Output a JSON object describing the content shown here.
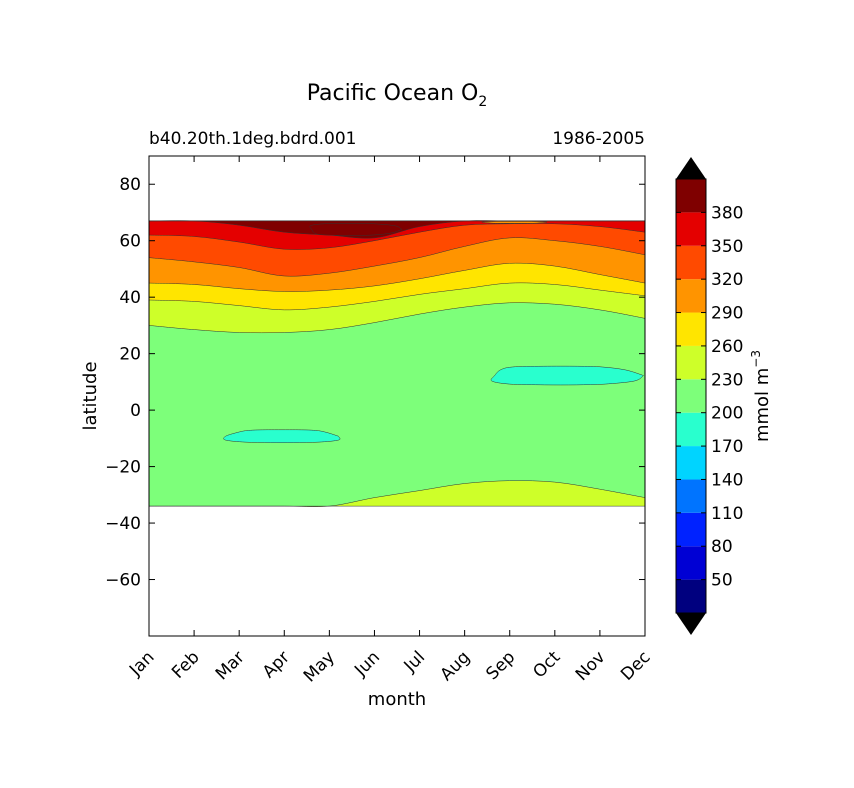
{
  "chart_data": {
    "type": "contourf",
    "title": "Pacific Ocean O",
    "title_subscript": "2",
    "subtitle_left": "b40.20th.1deg.bdrd.001",
    "subtitle_right": "1986-2005",
    "xlabel": "month",
    "ylabel": "latitude",
    "xlim": [
      0,
      11
    ],
    "ylim": [
      -80,
      90
    ],
    "x_tick_labels": [
      "Jan",
      "Feb",
      "Mar",
      "Apr",
      "May",
      "Jun",
      "Jul",
      "Aug",
      "Sep",
      "Oct",
      "Nov",
      "Dec"
    ],
    "y_ticks": [
      80,
      60,
      40,
      20,
      0,
      -20,
      -40,
      -60
    ],
    "y_tick_labels": [
      "80",
      "60",
      "40",
      "20",
      "0",
      "−20",
      "−40",
      "−60"
    ],
    "data_lat_range": [
      -34,
      67
    ],
    "colorbar": {
      "label": "mmol m",
      "label_superscript": "−3",
      "levels": [
        20,
        50,
        80,
        110,
        140,
        170,
        200,
        230,
        260,
        290,
        320,
        350,
        380,
        410
      ],
      "tick_labels": [
        "50",
        "80",
        "110",
        "140",
        "170",
        "200",
        "230",
        "260",
        "290",
        "320",
        "350",
        "380"
      ],
      "colors": [
        "#00007f",
        "#0000d4",
        "#0022ff",
        "#0074ff",
        "#00d4ff",
        "#29ffce",
        "#7dff7a",
        "#ceff29",
        "#ffe500",
        "#ff9400",
        "#ff4a00",
        "#e40000",
        "#7f0000"
      ],
      "extend_below_color": "#000000",
      "extend_above_color": "#000000"
    },
    "contours": [
      {
        "level": 230,
        "boundary_lat": [
          30,
          28.5,
          27.5,
          27.5,
          28.5,
          31,
          34,
          36.5,
          38,
          37.5,
          35.5,
          32.5
        ]
      },
      {
        "level": 260,
        "boundary_lat": [
          39,
          38.5,
          37,
          35.5,
          36.5,
          38.5,
          41,
          43,
          45,
          44.5,
          42.5,
          40.5
        ]
      },
      {
        "level": 290,
        "boundary_lat": [
          45,
          44.5,
          43,
          42,
          42.5,
          44,
          46.5,
          49.5,
          52,
          51,
          48,
          45
        ]
      },
      {
        "level": 320,
        "boundary_lat": [
          54,
          52.5,
          50.5,
          47.5,
          48.5,
          51,
          54,
          58,
          61,
          60,
          58,
          55
        ]
      },
      {
        "level": 350,
        "boundary_lat": [
          62,
          61.5,
          59.5,
          57,
          57.5,
          60,
          63,
          65.5,
          66,
          66,
          65,
          63
        ]
      },
      {
        "level": 380,
        "boundary_lat": [
          67,
          67,
          65.5,
          63,
          62,
          61,
          65,
          67,
          67,
          67,
          67,
          67
        ]
      }
    ],
    "low_region": {
      "level": 230,
      "boundary_lat": [
        -34,
        -34,
        -34,
        -34,
        -34,
        -31,
        -28.5,
        -26,
        -25,
        -25.5,
        -28,
        -31
      ]
    },
    "patches": [
      {
        "level": 170,
        "description": "low O2 pocket",
        "x_range": [
          1.7,
          4.2
        ],
        "lat_range": [
          -12.5,
          -6
        ]
      },
      {
        "level": 170,
        "description": "low O2 pocket",
        "x_range": [
          7.5,
          10.8
        ],
        "lat_range": [
          7.5,
          17
        ]
      },
      {
        "level": 380,
        "description": "high O2 core",
        "x_range": [
          3.5,
          5.5
        ],
        "lat_range": [
          61,
          67
        ]
      },
      {
        "level": 290,
        "description": "high O2 cap",
        "x_range": [
          7.4,
          8.8
        ],
        "lat_range": [
          66,
          67
        ]
      }
    ]
  }
}
